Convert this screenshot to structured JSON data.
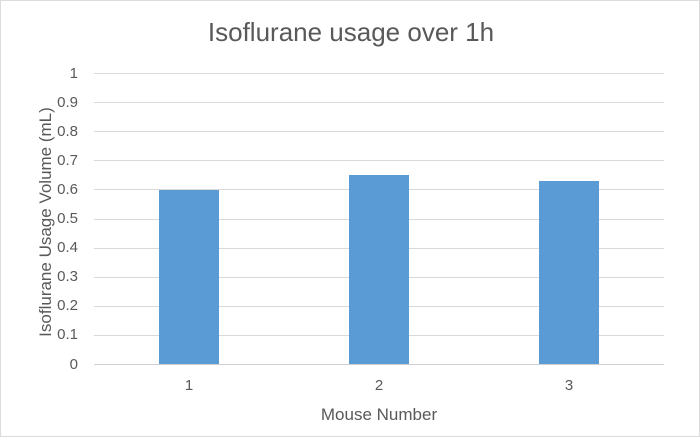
{
  "chart_data": {
    "type": "bar",
    "title": "Isoflurane usage over 1h",
    "xlabel": "Mouse Number",
    "ylabel": "Isoflurane Usage Volume (mL)",
    "categories": [
      "1",
      "2",
      "3"
    ],
    "values": [
      0.6,
      0.65,
      0.63
    ],
    "ylim": [
      0,
      1
    ],
    "ytick_step": 0.1,
    "ytick_labels": [
      "0",
      "0.1",
      "0.2",
      "0.3",
      "0.4",
      "0.5",
      "0.6",
      "0.7",
      "0.8",
      "0.9",
      "1"
    ],
    "grid": true,
    "legend": false,
    "layout_hints": {
      "legend_position": "none",
      "gridlines": "horizontal",
      "bar_color": "#5b9bd5",
      "text_color": "#595959",
      "gridline_color": "#d9d9d9",
      "axis_line_color": "#cfcfcf",
      "chart_border_color": "#dcdcdc",
      "background_color": "#ffffff"
    }
  }
}
